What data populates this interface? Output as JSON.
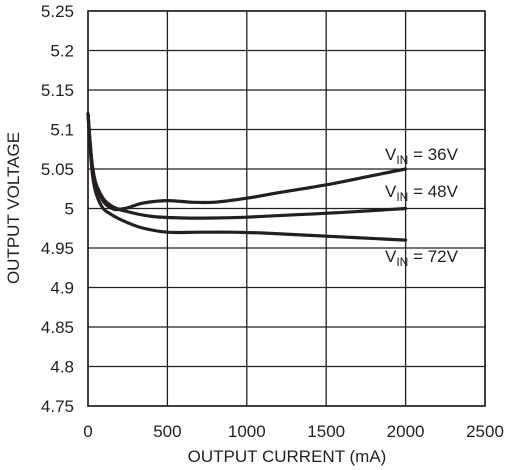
{
  "chart_data": {
    "type": "line",
    "xlabel": "OUTPUT CURRENT (mA)",
    "ylabel": "OUTPUT VOLTAGE",
    "xlim": [
      0,
      2500
    ],
    "ylim": [
      4.75,
      5.25
    ],
    "x_ticks": [
      "0",
      "500",
      "1000",
      "1500",
      "2000",
      "2500"
    ],
    "y_ticks": [
      "5.25",
      "5.2",
      "5.15",
      "5.1",
      "5.05",
      "5",
      "4.95",
      "4.9",
      "4.85",
      "4.8",
      "4.75"
    ],
    "grid": true,
    "series": [
      {
        "label_prefix": "V",
        "label_subscript": "IN",
        "label_suffix": " = 36V",
        "x": [
          0,
          30,
          80,
          150,
          230,
          350,
          500,
          650,
          800,
          1000,
          1200,
          1500,
          1800,
          2000
        ],
        "y": [
          5.12,
          5.05,
          5.015,
          5.0,
          5.0,
          5.007,
          5.01,
          5.008,
          5.008,
          5.013,
          5.02,
          5.03,
          5.042,
          5.05
        ]
      },
      {
        "label_prefix": "V",
        "label_subscript": "IN",
        "label_suffix": " = 48V",
        "x": [
          0,
          30,
          80,
          150,
          250,
          400,
          600,
          800,
          1000,
          1300,
          1600,
          2000
        ],
        "y": [
          5.12,
          5.05,
          5.018,
          5.003,
          4.996,
          4.99,
          4.988,
          4.988,
          4.989,
          4.992,
          4.995,
          5.0
        ]
      },
      {
        "label_prefix": "V",
        "label_subscript": "IN",
        "label_suffix": " = 72V",
        "x": [
          0,
          30,
          80,
          150,
          250,
          350,
          500,
          700,
          900,
          1100,
          1400,
          1700,
          2000
        ],
        "y": [
          5.12,
          5.04,
          5.005,
          4.992,
          4.982,
          4.975,
          4.97,
          4.97,
          4.97,
          4.969,
          4.966,
          4.963,
          4.96
        ]
      }
    ]
  }
}
